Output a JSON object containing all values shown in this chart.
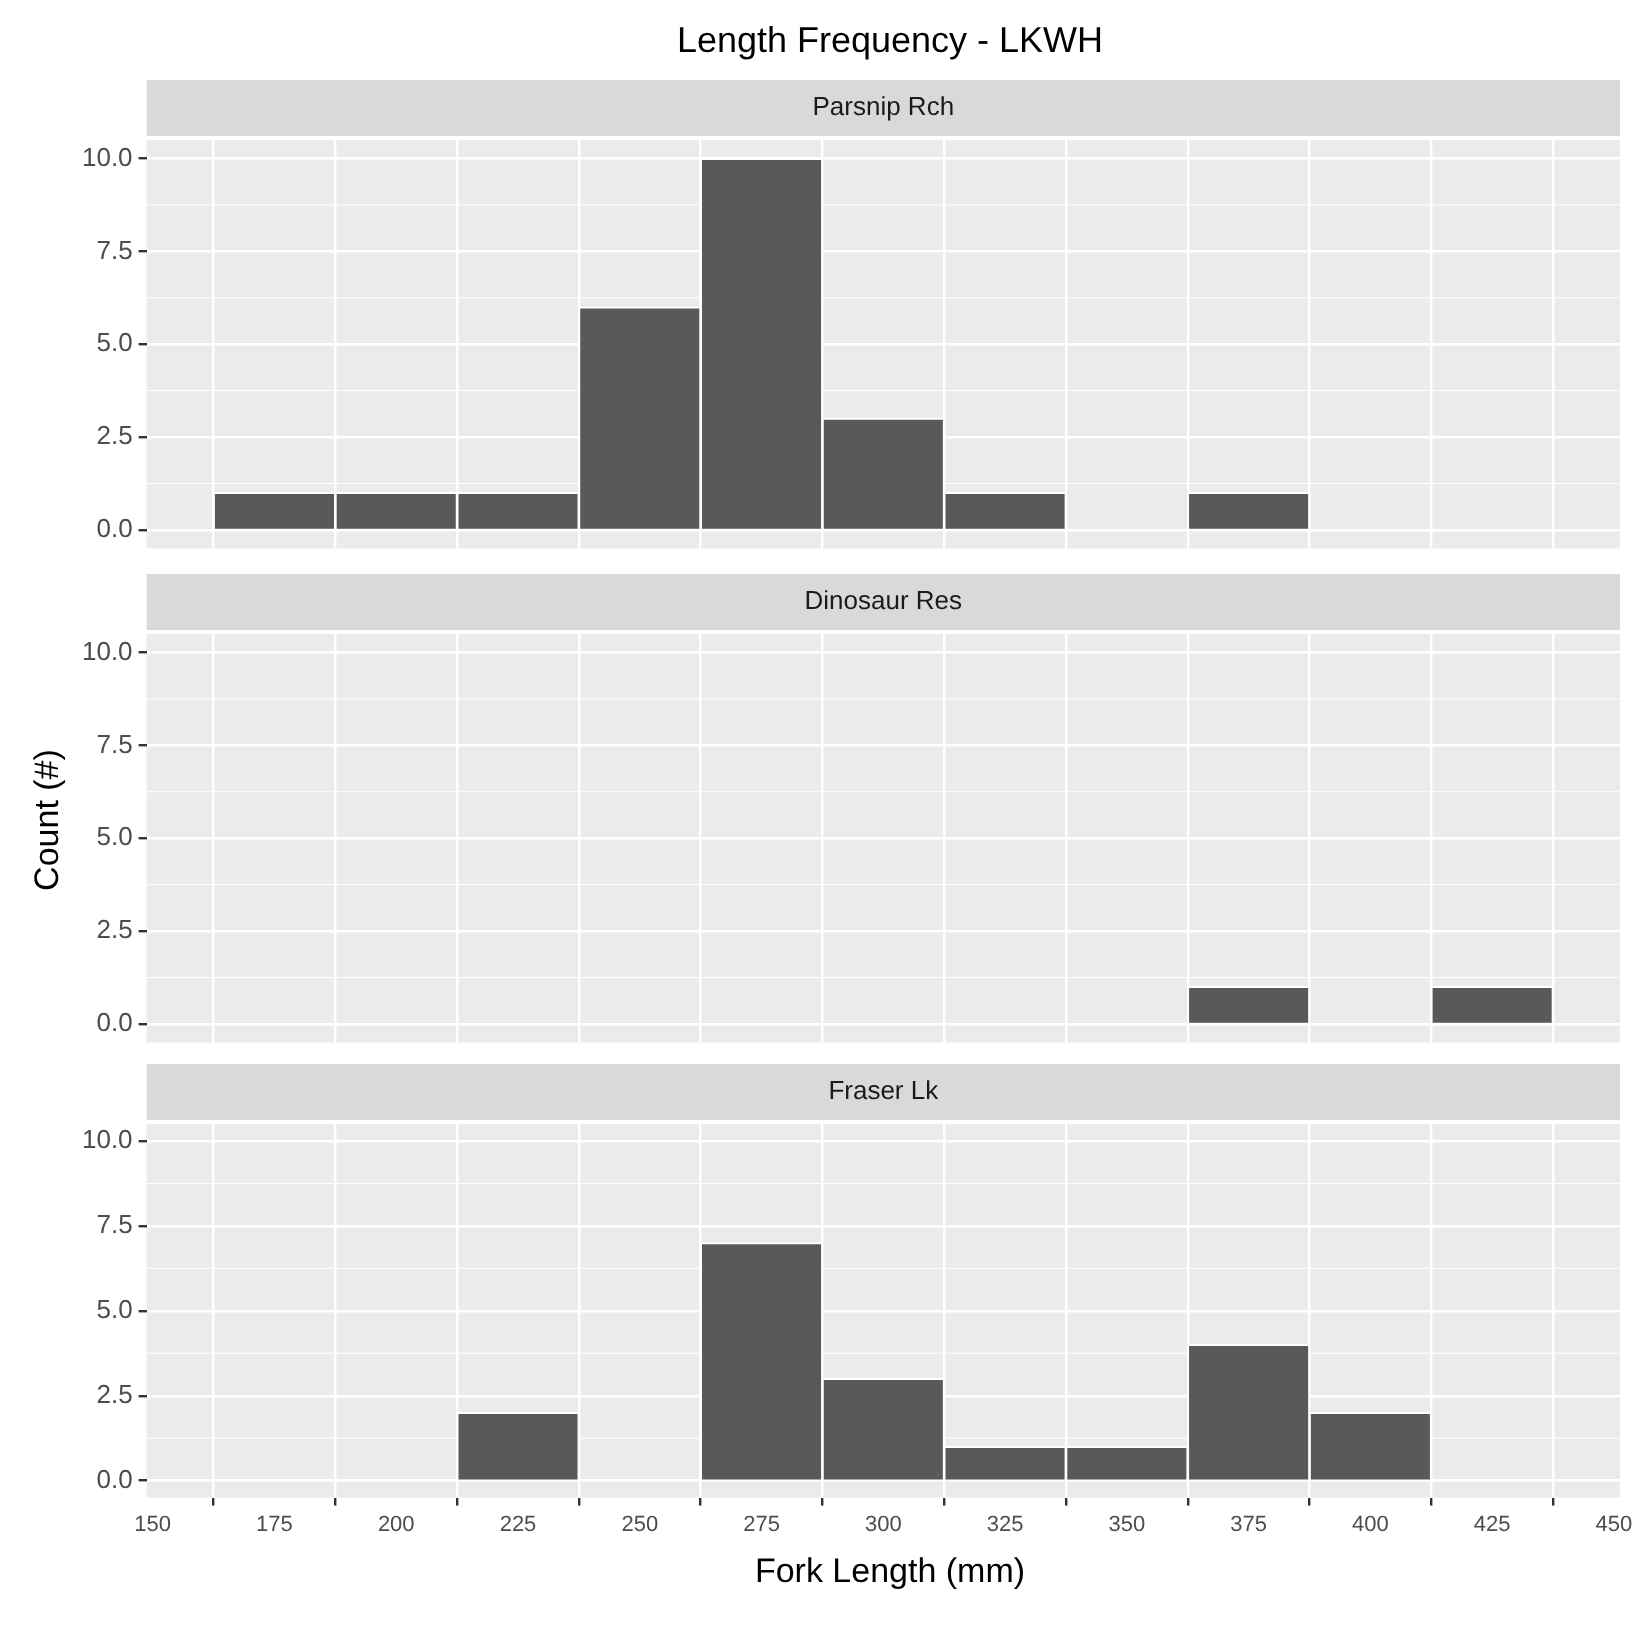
{
  "chart_data": [
    {
      "type": "histogram",
      "title": "Length Frequency - LKWH",
      "subtitle": "Parsnip Rch",
      "bins": [
        162.5,
        187.5,
        212.5,
        237.5,
        262.5,
        287.5,
        312.5,
        337.5,
        362.5,
        387.5,
        412.5,
        437.5
      ],
      "values": [
        1,
        1,
        1,
        6,
        10,
        3,
        1,
        0,
        1,
        0,
        0
      ],
      "color": "#595959",
      "xlim": [
        148.75,
        451.25
      ],
      "xticks": [
        150,
        175,
        200,
        225,
        250,
        275,
        300,
        325,
        350,
        375,
        400,
        425,
        450
      ],
      "ylim": [
        -0.5,
        10.5
      ],
      "yticks": [
        {
          "value": 0,
          "label": "0.0"
        },
        {
          "value": 2.5,
          "label": "2.5"
        },
        {
          "value": 5,
          "label": "5.0"
        },
        {
          "value": 7.5,
          "label": "7.5"
        },
        {
          "value": 10,
          "label": "10.0"
        }
      ],
      "grid": true,
      "tick_labels": "y"
    },
    {
      "type": "histogram",
      "subtitle": "Dinosaur Res",
      "ylabel": "Count (#)",
      "bins": [
        162.5,
        187.5,
        212.5,
        237.5,
        262.5,
        287.5,
        312.5,
        337.5,
        362.5,
        387.5,
        412.5,
        437.5
      ],
      "values": [
        0,
        0,
        0,
        0,
        0,
        0,
        0,
        0,
        1,
        0,
        1
      ],
      "color": "#595959",
      "xlim": [
        148.75,
        451.25
      ],
      "xticks": [
        150,
        175,
        200,
        225,
        250,
        275,
        300,
        325,
        350,
        375,
        400,
        425,
        450
      ],
      "ylim": [
        -0.5,
        10.5
      ],
      "yticks": [
        {
          "value": 0,
          "label": "0.0"
        },
        {
          "value": 2.5,
          "label": "2.5"
        },
        {
          "value": 5,
          "label": "5.0"
        },
        {
          "value": 7.5,
          "label": "7.5"
        },
        {
          "value": 10,
          "label": "10.0"
        }
      ],
      "grid": true,
      "tick_labels": "y"
    },
    {
      "type": "histogram",
      "subtitle": "Fraser Lk",
      "xlabel": "Fork Length (mm)",
      "bins": [
        162.5,
        187.5,
        212.5,
        237.5,
        262.5,
        287.5,
        312.5,
        337.5,
        362.5,
        387.5,
        412.5,
        437.5
      ],
      "values": [
        0,
        0,
        2,
        0,
        7,
        3,
        1,
        1,
        4,
        2,
        0
      ],
      "color": "#595959",
      "xlim": [
        148.75,
        451.25
      ],
      "xticks": [
        150,
        175,
        200,
        225,
        250,
        275,
        300,
        325,
        350,
        375,
        400,
        425,
        450
      ],
      "ylim": [
        -0.5,
        10.5
      ],
      "yticks": [
        {
          "value": 0,
          "label": "0.0"
        },
        {
          "value": 2.5,
          "label": "2.5"
        },
        {
          "value": 5,
          "label": "5.0"
        },
        {
          "value": 7.5,
          "label": "7.5"
        },
        {
          "value": 10,
          "label": "10.0"
        }
      ],
      "grid": true
    }
  ]
}
